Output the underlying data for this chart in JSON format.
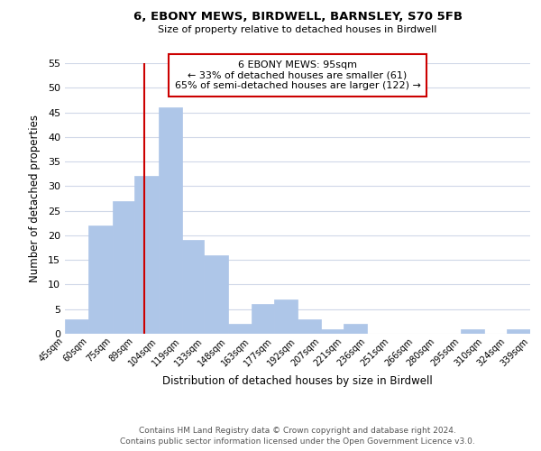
{
  "title": "6, EBONY MEWS, BIRDWELL, BARNSLEY, S70 5FB",
  "subtitle": "Size of property relative to detached houses in Birdwell",
  "xlabel": "Distribution of detached houses by size in Birdwell",
  "ylabel": "Number of detached properties",
  "bar_edges": [
    45,
    60,
    75,
    89,
    104,
    119,
    133,
    148,
    163,
    177,
    192,
    207,
    221,
    236,
    251,
    266,
    280,
    295,
    310,
    324,
    339
  ],
  "bar_heights": [
    3,
    22,
    27,
    32,
    46,
    19,
    16,
    2,
    6,
    7,
    3,
    1,
    2,
    0,
    0,
    0,
    0,
    1,
    0,
    1
  ],
  "bar_color": "#aec6e8",
  "bar_edge_color": "#aec6e8",
  "grid_color": "#d0d8e8",
  "background_color": "#ffffff",
  "vline_x": 95,
  "vline_color": "#cc0000",
  "ylim": [
    0,
    55
  ],
  "annotation_title": "6 EBONY MEWS: 95sqm",
  "annotation_line1": "← 33% of detached houses are smaller (61)",
  "annotation_line2": "65% of semi-detached houses are larger (122) →",
  "annotation_box_color": "#ffffff",
  "annotation_box_edge": "#cc0000",
  "tick_labels": [
    "45sqm",
    "60sqm",
    "75sqm",
    "89sqm",
    "104sqm",
    "119sqm",
    "133sqm",
    "148sqm",
    "163sqm",
    "177sqm",
    "192sqm",
    "207sqm",
    "221sqm",
    "236sqm",
    "251sqm",
    "266sqm",
    "280sqm",
    "295sqm",
    "310sqm",
    "324sqm",
    "339sqm"
  ],
  "footer_line1": "Contains HM Land Registry data © Crown copyright and database right 2024.",
  "footer_line2": "Contains public sector information licensed under the Open Government Licence v3.0."
}
